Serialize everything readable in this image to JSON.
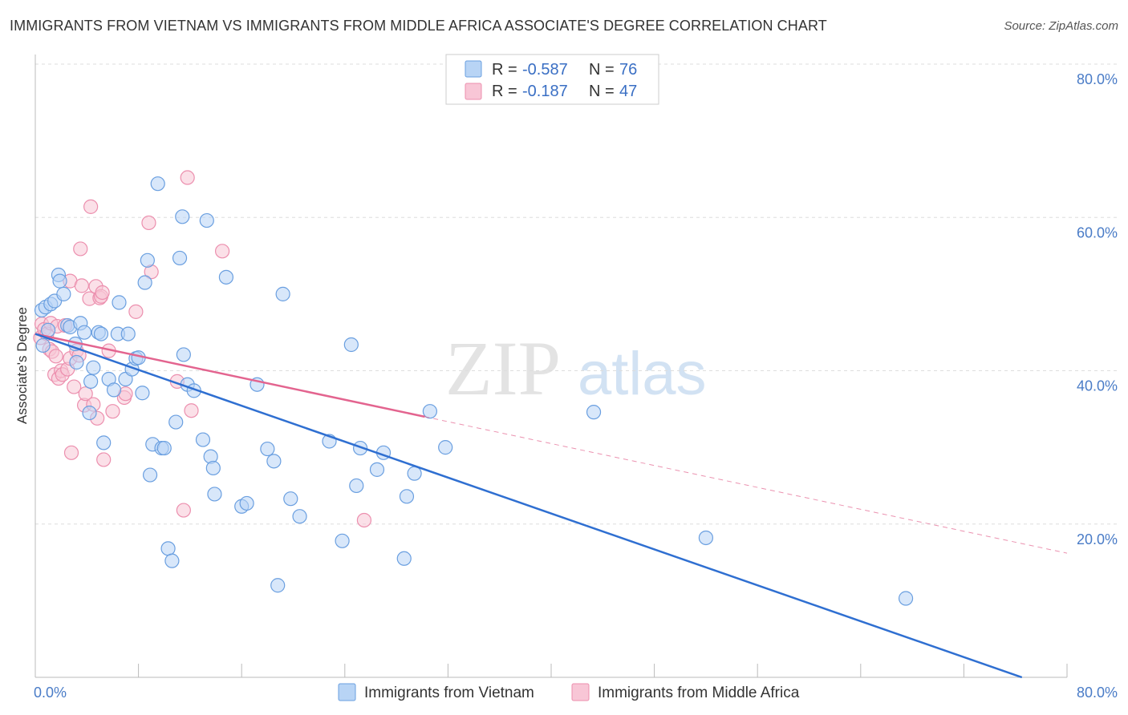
{
  "title": "IMMIGRANTS FROM VIETNAM VS IMMIGRANTS FROM MIDDLE AFRICA ASSOCIATE'S DEGREE CORRELATION CHART",
  "source": "Source: ZipAtlas.com",
  "watermark": {
    "zip": "ZIP",
    "atlas": "atlas"
  },
  "colors": {
    "vietnam_fill": "#b8d4f5",
    "vietnam_stroke": "#6a9fe0",
    "vietnam_line": "#2f6fd1",
    "africa_fill": "#f8c6d6",
    "africa_stroke": "#ec8fae",
    "africa_line": "#e3648f",
    "grid": "#dddddd",
    "tick_text": "#4a7cc7"
  },
  "legend": {
    "rows": [
      {
        "r_label": "R =",
        "r_value": "-0.587",
        "n_label": "N =",
        "n_value": "76"
      },
      {
        "r_label": "R =",
        "r_value": "-0.187",
        "n_label": "N =",
        "n_value": "47"
      }
    ]
  },
  "chart_data": {
    "type": "scatter",
    "title": "IMMIGRANTS FROM VIETNAM VS IMMIGRANTS FROM MIDDLE AFRICA ASSOCIATE'S DEGREE CORRELATION CHART",
    "xlabel": "",
    "ylabel": "Associate's Degree",
    "xlim": [
      0,
      80
    ],
    "ylim": [
      0,
      80
    ],
    "x_tick_labels": [
      "0.0%",
      "80.0%"
    ],
    "y_ticks": [
      {
        "value": 80,
        "label": "80.0%"
      },
      {
        "value": 60,
        "label": "60.0%"
      },
      {
        "value": 40,
        "label": "40.0%"
      },
      {
        "value": 20,
        "label": "20.0%"
      }
    ],
    "grid": true,
    "legend_position": "top-center",
    "series": [
      {
        "name": "Immigrants from Vietnam",
        "r": -0.587,
        "n": 76,
        "trend": {
          "x0": 0,
          "y0": 44.8,
          "x1": 76.5,
          "y1": 0,
          "dashed_to": null
        },
        "points": [
          [
            0.5,
            47.9
          ],
          [
            0.8,
            48.3
          ],
          [
            1.0,
            45.3
          ],
          [
            0.6,
            43.3
          ],
          [
            1.2,
            48.7
          ],
          [
            1.5,
            49.1
          ],
          [
            1.8,
            52.5
          ],
          [
            1.9,
            51.7
          ],
          [
            2.2,
            50.0
          ],
          [
            2.5,
            45.9
          ],
          [
            2.7,
            45.7
          ],
          [
            3.1,
            43.5
          ],
          [
            3.2,
            41.1
          ],
          [
            3.5,
            46.2
          ],
          [
            3.8,
            45.0
          ],
          [
            4.2,
            34.5
          ],
          [
            4.3,
            38.6
          ],
          [
            4.5,
            40.4
          ],
          [
            4.9,
            45.0
          ],
          [
            5.1,
            44.8
          ],
          [
            5.3,
            30.6
          ],
          [
            5.7,
            38.9
          ],
          [
            6.1,
            37.5
          ],
          [
            6.4,
            44.8
          ],
          [
            6.5,
            48.9
          ],
          [
            7.0,
            38.9
          ],
          [
            7.2,
            44.8
          ],
          [
            7.5,
            40.2
          ],
          [
            7.8,
            41.6
          ],
          [
            8.0,
            41.7
          ],
          [
            8.3,
            37.1
          ],
          [
            8.5,
            51.5
          ],
          [
            8.7,
            54.4
          ],
          [
            8.9,
            26.4
          ],
          [
            9.1,
            30.4
          ],
          [
            9.5,
            64.4
          ],
          [
            9.8,
            29.9
          ],
          [
            10.0,
            29.9
          ],
          [
            10.3,
            16.8
          ],
          [
            10.6,
            15.2
          ],
          [
            10.9,
            33.3
          ],
          [
            11.2,
            54.7
          ],
          [
            11.4,
            60.1
          ],
          [
            11.5,
            42.1
          ],
          [
            11.8,
            38.2
          ],
          [
            12.3,
            37.4
          ],
          [
            13.0,
            31.0
          ],
          [
            13.3,
            59.6
          ],
          [
            13.6,
            28.8
          ],
          [
            13.8,
            27.3
          ],
          [
            13.9,
            23.9
          ],
          [
            14.8,
            52.2
          ],
          [
            16.0,
            22.3
          ],
          [
            16.4,
            22.7
          ],
          [
            17.2,
            38.2
          ],
          [
            18.0,
            29.8
          ],
          [
            18.5,
            28.2
          ],
          [
            18.8,
            12.0
          ],
          [
            19.2,
            50.0
          ],
          [
            19.8,
            23.3
          ],
          [
            20.5,
            21.0
          ],
          [
            22.8,
            30.8
          ],
          [
            23.8,
            17.8
          ],
          [
            24.5,
            43.4
          ],
          [
            24.9,
            25.0
          ],
          [
            25.2,
            29.9
          ],
          [
            26.5,
            27.1
          ],
          [
            27.0,
            29.3
          ],
          [
            28.6,
            15.5
          ],
          [
            28.8,
            23.6
          ],
          [
            29.4,
            26.6
          ],
          [
            30.6,
            34.7
          ],
          [
            31.8,
            30.0
          ],
          [
            43.3,
            34.6
          ],
          [
            52.0,
            18.2
          ],
          [
            67.5,
            10.3
          ]
        ]
      },
      {
        "name": "Immigrants from Middle Africa",
        "r": -0.187,
        "n": 47,
        "trend": {
          "x0": 0,
          "y0": 44.8,
          "x1": 30.2,
          "y1": 34.0,
          "dashed_to": [
            80,
            16.2
          ]
        },
        "points": [
          [
            0.4,
            44.3
          ],
          [
            0.5,
            46.1
          ],
          [
            0.7,
            45.4
          ],
          [
            0.9,
            44.8
          ],
          [
            1.1,
            42.8
          ],
          [
            1.2,
            46.2
          ],
          [
            1.3,
            42.5
          ],
          [
            1.5,
            39.5
          ],
          [
            1.6,
            41.9
          ],
          [
            1.7,
            45.8
          ],
          [
            1.8,
            39.0
          ],
          [
            2.0,
            40.0
          ],
          [
            2.1,
            39.5
          ],
          [
            2.3,
            45.9
          ],
          [
            2.5,
            40.2
          ],
          [
            2.7,
            41.6
          ],
          [
            2.7,
            51.7
          ],
          [
            2.8,
            29.3
          ],
          [
            3.0,
            37.9
          ],
          [
            3.2,
            42.6
          ],
          [
            3.4,
            42.0
          ],
          [
            3.5,
            55.9
          ],
          [
            3.6,
            51.1
          ],
          [
            3.8,
            35.5
          ],
          [
            3.9,
            37.0
          ],
          [
            4.2,
            49.4
          ],
          [
            4.3,
            61.4
          ],
          [
            4.5,
            35.6
          ],
          [
            4.7,
            51.0
          ],
          [
            4.8,
            33.8
          ],
          [
            5.0,
            49.5
          ],
          [
            5.1,
            49.7
          ],
          [
            5.2,
            50.2
          ],
          [
            5.3,
            28.4
          ],
          [
            5.7,
            42.6
          ],
          [
            6.0,
            34.7
          ],
          [
            6.9,
            36.5
          ],
          [
            7.0,
            37.0
          ],
          [
            7.8,
            47.7
          ],
          [
            8.8,
            59.3
          ],
          [
            9.0,
            52.9
          ],
          [
            11.0,
            38.6
          ],
          [
            11.5,
            21.8
          ],
          [
            11.8,
            65.2
          ],
          [
            12.1,
            34.8
          ],
          [
            14.5,
            55.6
          ],
          [
            25.5,
            20.5
          ]
        ]
      }
    ]
  }
}
